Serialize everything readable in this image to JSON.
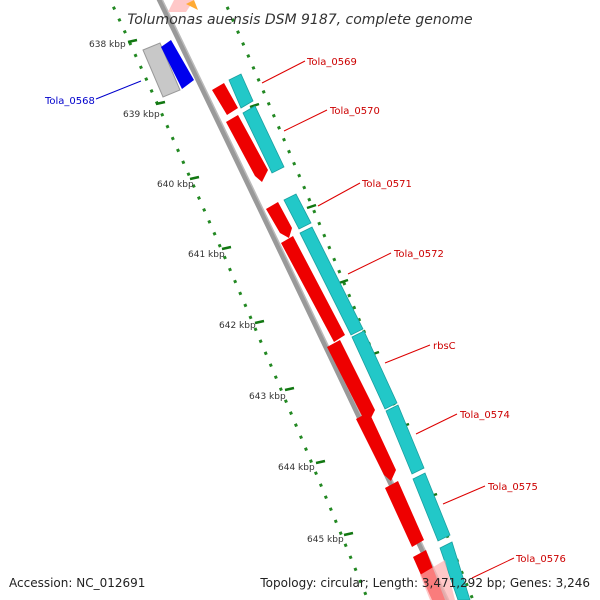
{
  "title": "Tolumonas auensis DSM 9187, complete genome",
  "accession": "Accession: NC_012691",
  "summary": "Topology: circular; Length: 3,471,292 bp; Genes: 3,246",
  "colors": {
    "forward_cds": "#ff0000",
    "reverse_cds": "#0000ff",
    "gene_feature": "#20c0c0",
    "backbone": "#888888",
    "tick": "#007700",
    "forward_label": "#cc0000",
    "reverse_label": "#0000cc"
  },
  "ruler": [
    {
      "label": "638 kbp"
    },
    {
      "label": "639 kbp"
    },
    {
      "label": "640 kbp"
    },
    {
      "label": "641 kbp"
    },
    {
      "label": "642 kbp"
    },
    {
      "label": "643 kbp"
    },
    {
      "label": "644 kbp"
    },
    {
      "label": "645 kbp"
    }
  ],
  "genes": [
    {
      "name": "Tola_0568",
      "strand": "reverse"
    },
    {
      "name": "Tola_0569",
      "strand": "forward"
    },
    {
      "name": "Tola_0570",
      "strand": "forward"
    },
    {
      "name": "Tola_0571",
      "strand": "forward"
    },
    {
      "name": "Tola_0572",
      "strand": "forward"
    },
    {
      "name": "rbsC",
      "strand": "forward"
    },
    {
      "name": "Tola_0574",
      "strand": "forward"
    },
    {
      "name": "Tola_0575",
      "strand": "forward"
    },
    {
      "name": "Tola_0576",
      "strand": "forward"
    }
  ]
}
